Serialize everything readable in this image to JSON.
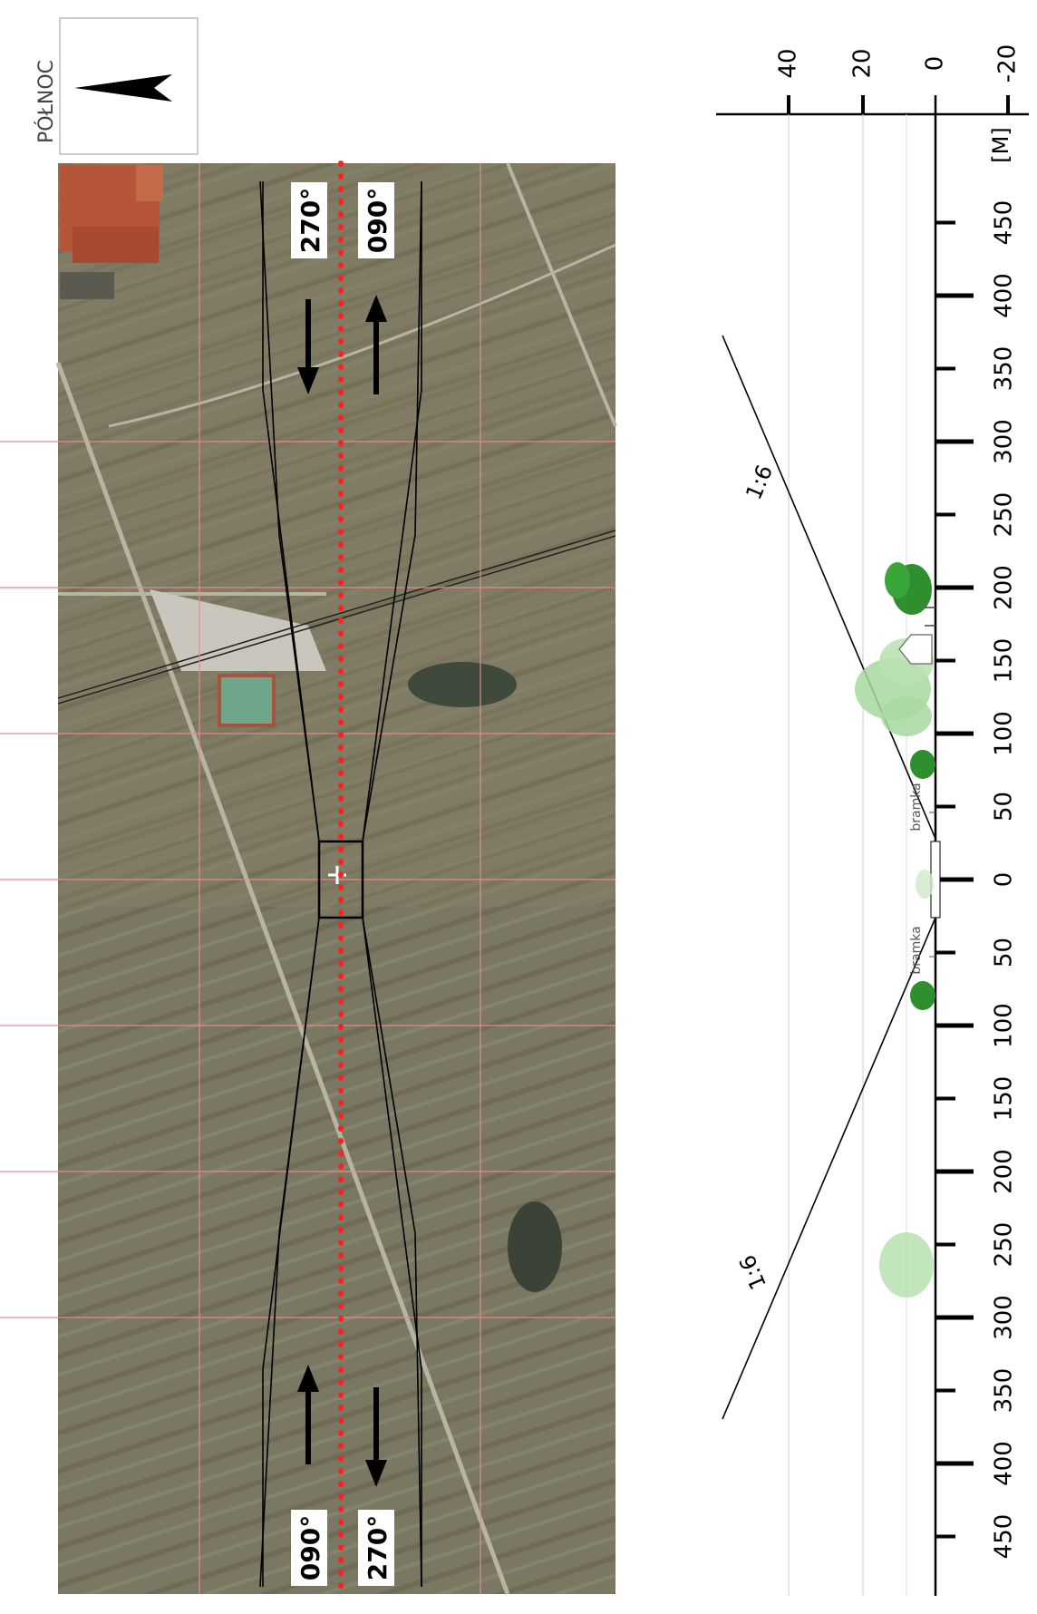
{
  "north": {
    "label": "PÓŁNOC",
    "icon": "north-arrow-icon"
  },
  "runway_labels": {
    "top_left": "270°",
    "top_right": "090°",
    "bottom_left": "090°",
    "bottom_right": "270°"
  },
  "profile": {
    "height_ticks": [
      "40",
      "20",
      "0",
      "-20"
    ],
    "unit": "[M]",
    "distance_ticks": [
      "450",
      "400",
      "350",
      "300",
      "250",
      "200",
      "150",
      "100",
      "50",
      "0",
      "50",
      "100",
      "150",
      "200",
      "250",
      "300",
      "350",
      "400",
      "450"
    ],
    "slope_top": "1:6",
    "slope_bottom": "1:6",
    "gate_top": "bramka",
    "gate_bottom": "bramka"
  },
  "colors": {
    "grid_red": "#e58a8a",
    "centerline_red": "#ff2020",
    "tree_dark": "#2f8f2f",
    "tree_light": "#a8d8a0"
  }
}
